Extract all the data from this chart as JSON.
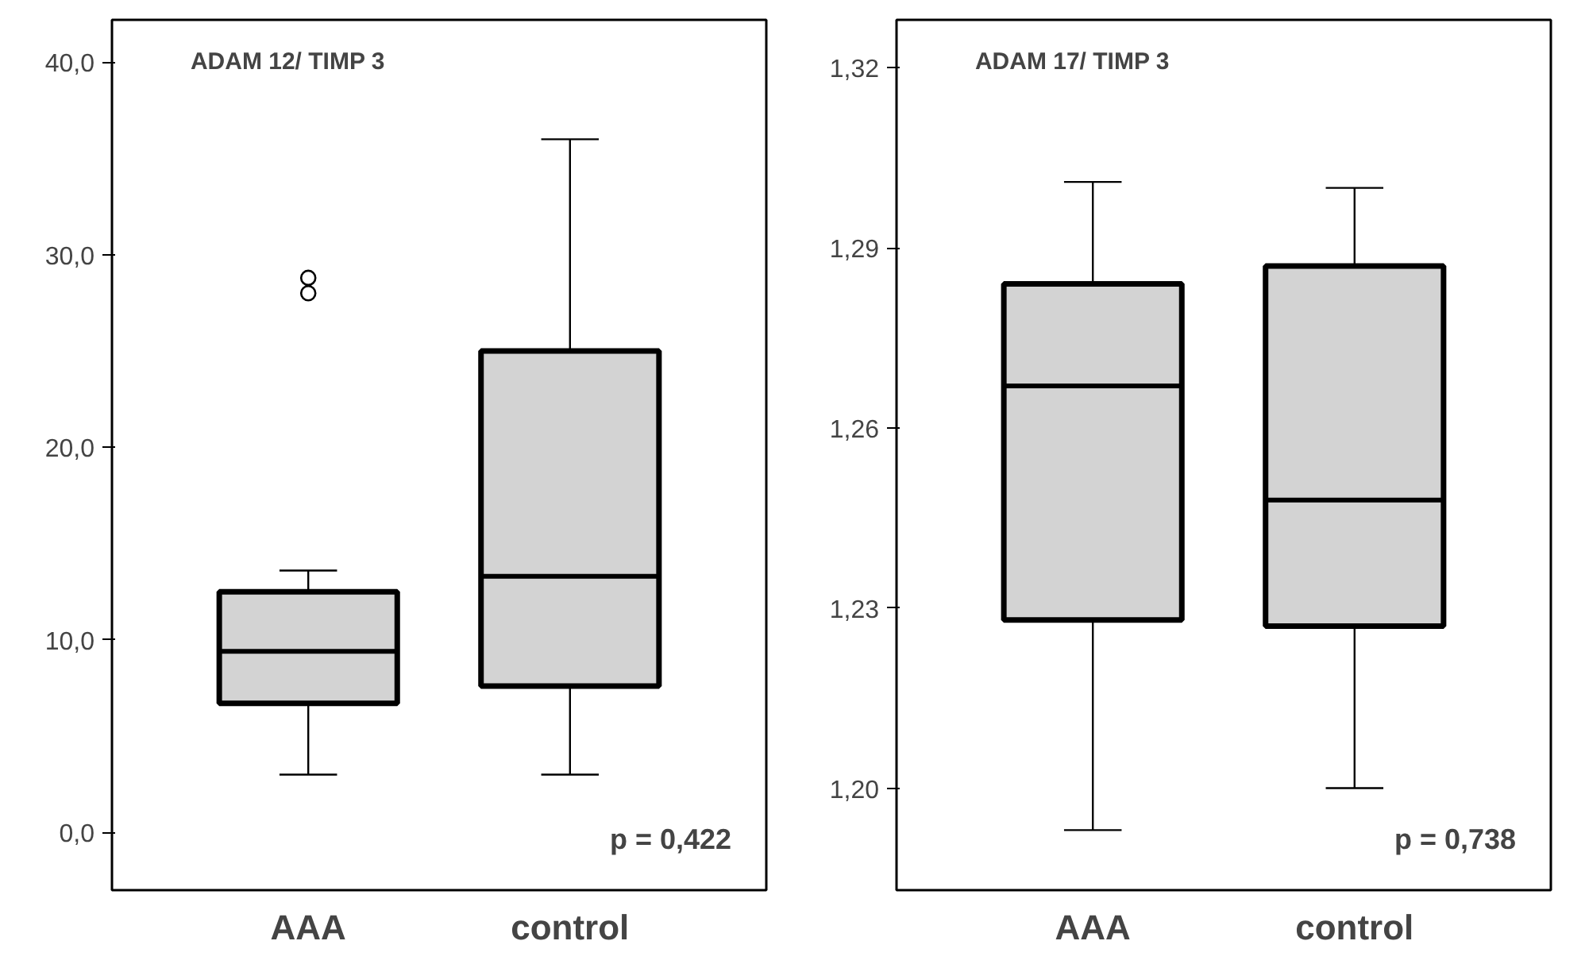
{
  "chart_data": [
    {
      "type": "box",
      "title": "ADAM 12/ TIMP 3",
      "categories": [
        "AAA",
        "control"
      ],
      "series": [
        {
          "color": "#d3d3d3",
          "boxes": [
            {
              "low": 3.0,
              "q1": 6.7,
              "median": 9.4,
              "q3": 12.5,
              "high": 13.6,
              "outliers": [
                28.0,
                28.8
              ]
            },
            {
              "low": 3.0,
              "q1": 7.6,
              "median": 13.3,
              "q3": 25.0,
              "high": 36.0
            }
          ]
        }
      ],
      "ylim": [
        -3.0,
        42.2
      ],
      "yticks": [
        {
          "value": 0,
          "label": "0,0"
        },
        {
          "value": 10,
          "label": "10,0"
        },
        {
          "value": 20,
          "label": "20,0"
        },
        {
          "value": 30,
          "label": "30,0"
        },
        {
          "value": 40,
          "label": "40,0"
        }
      ],
      "grid": false,
      "annotations": [
        "p = 0,422"
      ]
    },
    {
      "type": "box",
      "title": "ADAM 17/ TIMP 3",
      "categories": [
        "AAA",
        "control"
      ],
      "series": [
        {
          "color": "#d3d3d3",
          "boxes": [
            {
              "low": 1.193,
              "q1": 1.228,
              "median": 1.267,
              "q3": 1.284,
              "high": 1.301
            },
            {
              "low": 1.2,
              "q1": 1.227,
              "median": 1.248,
              "q3": 1.287,
              "high": 1.3
            }
          ]
        }
      ],
      "ylim": [
        1.183,
        1.328
      ],
      "yticks": [
        {
          "value": 1.2,
          "label": "1,20"
        },
        {
          "value": 1.23,
          "label": "1,23"
        },
        {
          "value": 1.26,
          "label": "1,26"
        },
        {
          "value": 1.29,
          "label": "1,29"
        },
        {
          "value": 1.32,
          "label": "1,32"
        }
      ],
      "grid": false,
      "annotations": [
        "p = 0,738"
      ]
    }
  ]
}
